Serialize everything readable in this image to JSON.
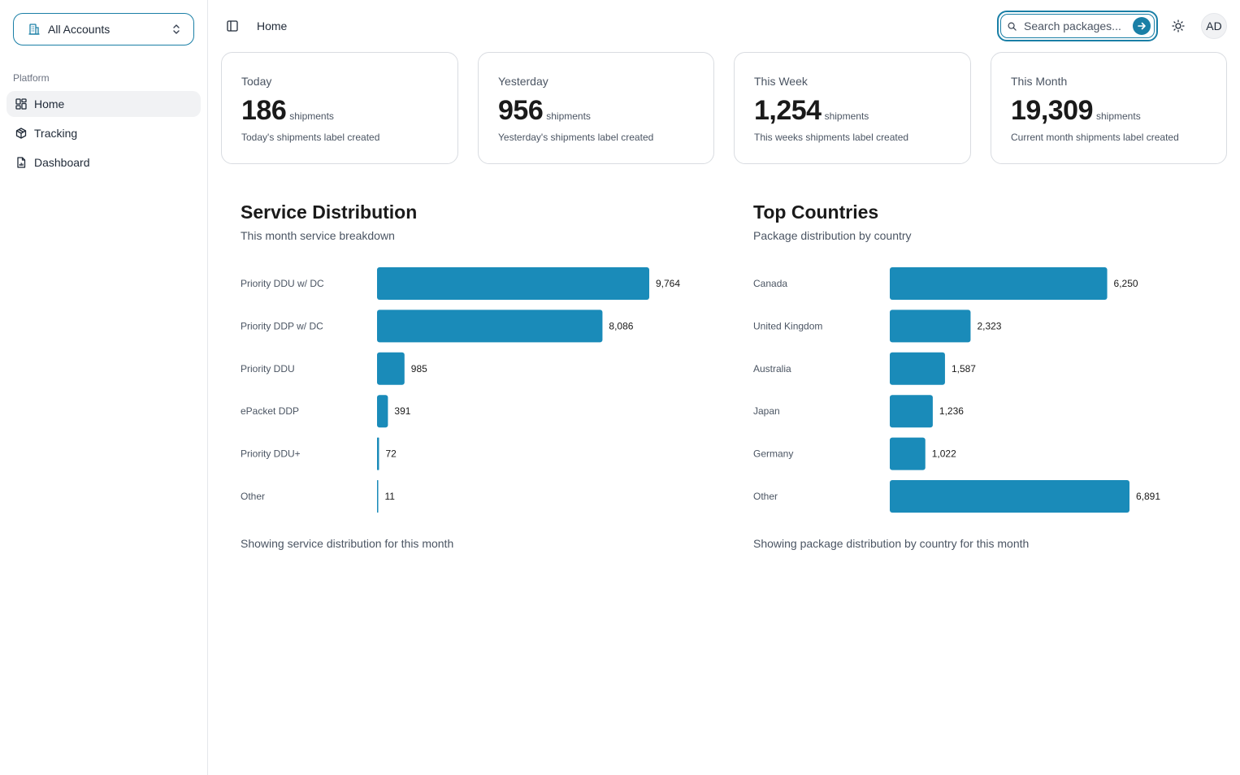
{
  "sidebar": {
    "account_label": "All Accounts",
    "section_label": "Platform",
    "items": [
      {
        "label": "Home",
        "icon": "dashboard-grid-icon",
        "active": true
      },
      {
        "label": "Tracking",
        "icon": "package-icon",
        "active": false
      },
      {
        "label": "Dashboard",
        "icon": "report-file-icon",
        "active": false
      }
    ]
  },
  "header": {
    "title": "Home",
    "search_placeholder": "Search packages...",
    "avatar_initials": "AD"
  },
  "stats": [
    {
      "title": "Today",
      "value": "186",
      "unit": "shipments",
      "description": "Today's shipments label created"
    },
    {
      "title": "Yesterday",
      "value": "956",
      "unit": "shipments",
      "description": "Yesterday's shipments label created"
    },
    {
      "title": "This Week",
      "value": "1,254",
      "unit": "shipments",
      "description": "This weeks shipments label created"
    },
    {
      "title": "This Month",
      "value": "19,309",
      "unit": "shipments",
      "description": "Current month shipments label created"
    }
  ],
  "colors": {
    "accent": "#1a8bb9",
    "border": "#d9dce1",
    "muted_text": "#4b5563"
  },
  "chart_data": [
    {
      "type": "bar",
      "orientation": "horizontal",
      "title": "Service Distribution",
      "subtitle": "This month service breakdown",
      "footer": "Showing service distribution for this month",
      "categories": [
        "Priority DDU w/ DC",
        "Priority DDP w/ DC",
        "Priority DDU",
        "ePacket DDP",
        "Priority DDU+",
        "Other"
      ],
      "values": [
        9764,
        8086,
        985,
        391,
        72,
        11
      ],
      "value_labels": [
        "9,764",
        "8,086",
        "985",
        "391",
        "72",
        "11"
      ],
      "grid": false,
      "color": "#1a8bb9"
    },
    {
      "type": "bar",
      "orientation": "horizontal",
      "title": "Top Countries",
      "subtitle": "Package distribution by country",
      "footer": "Showing package distribution by country for this month",
      "categories": [
        "Canada",
        "United Kingdom",
        "Australia",
        "Japan",
        "Germany",
        "Other"
      ],
      "values": [
        6250,
        2323,
        1587,
        1236,
        1022,
        6891
      ],
      "value_labels": [
        "6,250",
        "2,323",
        "1,587",
        "1,236",
        "1,022",
        "6,891"
      ],
      "grid": false,
      "color": "#1a8bb9"
    }
  ]
}
